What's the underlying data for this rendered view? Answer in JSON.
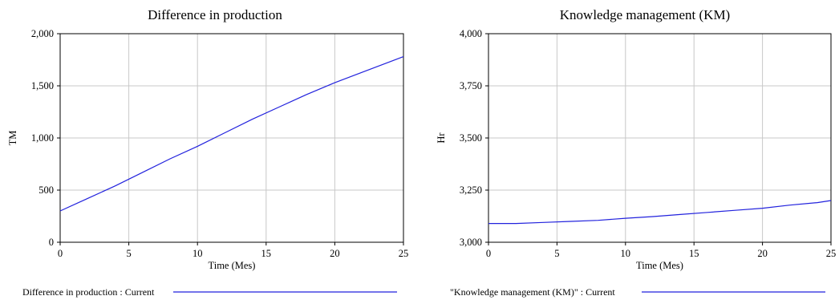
{
  "chart_data": [
    {
      "type": "line",
      "title": "Difference in production",
      "xlabel": "Time (Mes)",
      "ylabel": "TM",
      "xlim": [
        0,
        25
      ],
      "ylim": [
        0,
        2000
      ],
      "x_ticks": [
        0,
        5,
        10,
        15,
        20,
        25
      ],
      "y_ticks": [
        0,
        500,
        1000,
        1500,
        2000
      ],
      "x_tick_labels": [
        "0",
        "5",
        "10",
        "15",
        "20",
        "25"
      ],
      "y_tick_labels": [
        "0",
        "500",
        "1,000",
        "1,500",
        "2,000"
      ],
      "grid": true,
      "legend_position": "bottom",
      "series": [
        {
          "name": "Difference in production : Current",
          "color": "#2222dd",
          "x": [
            0,
            2,
            4,
            6,
            8,
            10,
            12,
            14,
            16,
            18,
            20,
            22,
            24,
            25
          ],
          "y": [
            300,
            420,
            540,
            670,
            800,
            920,
            1050,
            1180,
            1300,
            1420,
            1530,
            1630,
            1730,
            1780
          ]
        }
      ]
    },
    {
      "type": "line",
      "title": "Knowledge management (KM)",
      "xlabel": "Time (Mes)",
      "ylabel": "Hr",
      "xlim": [
        0,
        25
      ],
      "ylim": [
        3000,
        4000
      ],
      "x_ticks": [
        0,
        5,
        10,
        15,
        20,
        25
      ],
      "y_ticks": [
        3000,
        3250,
        3500,
        3750,
        4000
      ],
      "x_tick_labels": [
        "0",
        "5",
        "10",
        "15",
        "20",
        "25"
      ],
      "y_tick_labels": [
        "3,000",
        "3,250",
        "3,500",
        "3,750",
        "4,000"
      ],
      "grid": true,
      "legend_position": "bottom",
      "series": [
        {
          "name": "\"Knowledge management (KM)\" : Current",
          "color": "#2222dd",
          "x": [
            0,
            2,
            4,
            6,
            8,
            10,
            12,
            14,
            16,
            18,
            20,
            22,
            24,
            25
          ],
          "y": [
            3090,
            3090,
            3095,
            3100,
            3105,
            3115,
            3123,
            3133,
            3143,
            3153,
            3163,
            3178,
            3190,
            3200
          ]
        }
      ]
    }
  ]
}
